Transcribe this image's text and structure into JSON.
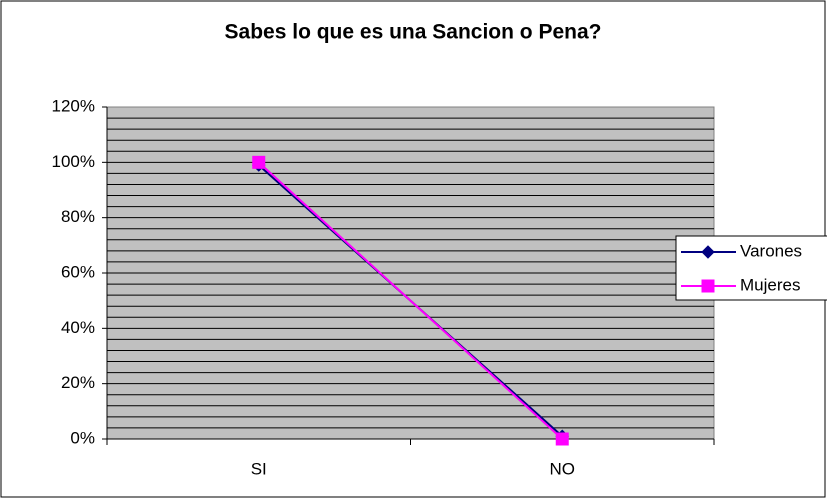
{
  "chart_data": {
    "type": "line",
    "title": "Sabes lo que es una Sancion o Pena?",
    "categories": [
      "SI",
      "NO"
    ],
    "series": [
      {
        "name": "Varones",
        "color": "#000080",
        "marker": "diamond",
        "values": [
          99,
          1
        ]
      },
      {
        "name": "Mujeres",
        "color": "#ff00ff",
        "marker": "square",
        "values": [
          100,
          0
        ]
      }
    ],
    "ylim": [
      0,
      120
    ],
    "yticks": [
      {
        "value": 0,
        "label": "0%"
      },
      {
        "value": 20,
        "label": "20%"
      },
      {
        "value": 40,
        "label": "40%"
      },
      {
        "value": 60,
        "label": "60%"
      },
      {
        "value": 80,
        "label": "80%"
      },
      {
        "value": 100,
        "label": "100%"
      },
      {
        "value": 120,
        "label": "120%"
      }
    ],
    "grid_lines": [
      4,
      8,
      12,
      16,
      20,
      24,
      28,
      32,
      36,
      40,
      44,
      48,
      52,
      56,
      60,
      64,
      68,
      72,
      76,
      80,
      84,
      88,
      92,
      96,
      100,
      104,
      108,
      112,
      116
    ],
    "grid": true,
    "legend": "right"
  }
}
